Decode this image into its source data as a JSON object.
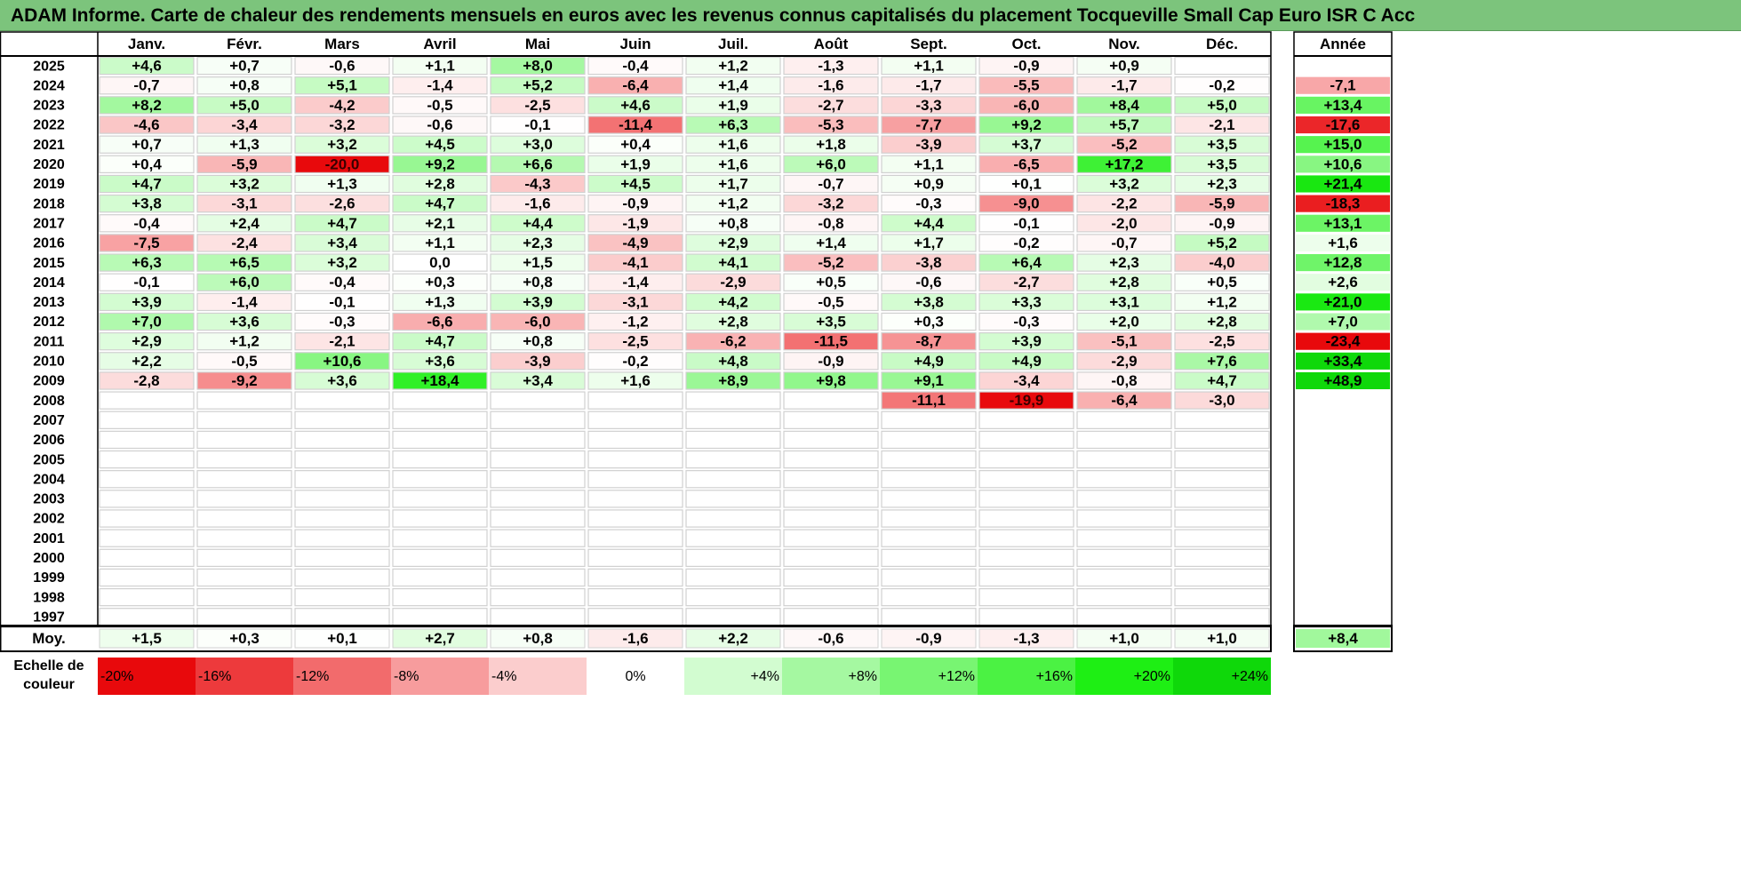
{
  "title": "ADAM Informe. Carte de chaleur des rendements mensuels en euros avec les revenus connus capitalisés du placement Tocqueville Small Cap Euro ISR C Acc",
  "chart_data": {
    "type": "heatmap",
    "months": [
      "Janv.",
      "Févr.",
      "Mars",
      "Avril",
      "Mai",
      "Juin",
      "Juil.",
      "Août",
      "Sept.",
      "Oct.",
      "Nov.",
      "Déc."
    ],
    "year_header": "Année",
    "rows": [
      {
        "year": "2025",
        "values": [
          "+4,6",
          "+0,7",
          "-0,6",
          "+1,1",
          "+8,0",
          "-0,4",
          "+1,2",
          "-1,3",
          "+1,1",
          "-0,9",
          "+0,9",
          ""
        ],
        "annual": ""
      },
      {
        "year": "2024",
        "values": [
          "-0,7",
          "+0,8",
          "+5,1",
          "-1,4",
          "+5,2",
          "-6,4",
          "+1,4",
          "-1,6",
          "-1,7",
          "-5,5",
          "-1,7",
          "-0,2"
        ],
        "annual": "-7,1"
      },
      {
        "year": "2023",
        "values": [
          "+8,2",
          "+5,0",
          "-4,2",
          "-0,5",
          "-2,5",
          "+4,6",
          "+1,9",
          "-2,7",
          "-3,3",
          "-6,0",
          "+8,4",
          "+5,0"
        ],
        "annual": "+13,4"
      },
      {
        "year": "2022",
        "values": [
          "-4,6",
          "-3,4",
          "-3,2",
          "-0,6",
          "-0,1",
          "-11,4",
          "+6,3",
          "-5,3",
          "-7,7",
          "+9,2",
          "+5,7",
          "-2,1"
        ],
        "annual": "-17,6"
      },
      {
        "year": "2021",
        "values": [
          "+0,7",
          "+1,3",
          "+3,2",
          "+4,5",
          "+3,0",
          "+0,4",
          "+1,6",
          "+1,8",
          "-3,9",
          "+3,7",
          "-5,2",
          "+3,5"
        ],
        "annual": "+15,0"
      },
      {
        "year": "2020",
        "values": [
          "+0,4",
          "-5,9",
          "-20,0",
          "+9,2",
          "+6,6",
          "+1,9",
          "+1,6",
          "+6,0",
          "+1,1",
          "-6,5",
          "+17,2",
          "+3,5"
        ],
        "annual": "+10,6"
      },
      {
        "year": "2019",
        "values": [
          "+4,7",
          "+3,2",
          "+1,3",
          "+2,8",
          "-4,3",
          "+4,5",
          "+1,7",
          "-0,7",
          "+0,9",
          "+0,1",
          "+3,2",
          "+2,3"
        ],
        "annual": "+21,4"
      },
      {
        "year": "2018",
        "values": [
          "+3,8",
          "-3,1",
          "-2,6",
          "+4,7",
          "-1,6",
          "-0,9",
          "+1,2",
          "-3,2",
          "-0,3",
          "-9,0",
          "-2,2",
          "-5,9"
        ],
        "annual": "-18,3"
      },
      {
        "year": "2017",
        "values": [
          "-0,4",
          "+2,4",
          "+4,7",
          "+2,1",
          "+4,4",
          "-1,9",
          "+0,8",
          "-0,8",
          "+4,4",
          "-0,1",
          "-2,0",
          "-0,9"
        ],
        "annual": "+13,1"
      },
      {
        "year": "2016",
        "values": [
          "-7,5",
          "-2,4",
          "+3,4",
          "+1,1",
          "+2,3",
          "-4,9",
          "+2,9",
          "+1,4",
          "+1,7",
          "-0,2",
          "-0,7",
          "+5,2"
        ],
        "annual": "+1,6"
      },
      {
        "year": "2015",
        "values": [
          "+6,3",
          "+6,5",
          "+3,2",
          "0,0",
          "+1,5",
          "-4,1",
          "+4,1",
          "-5,2",
          "-3,8",
          "+6,4",
          "+2,3",
          "-4,0"
        ],
        "annual": "+12,8"
      },
      {
        "year": "2014",
        "values": [
          "-0,1",
          "+6,0",
          "-0,4",
          "+0,3",
          "+0,8",
          "-1,4",
          "-2,9",
          "+0,5",
          "-0,6",
          "-2,7",
          "+2,8",
          "+0,5"
        ],
        "annual": "+2,6"
      },
      {
        "year": "2013",
        "values": [
          "+3,9",
          "-1,4",
          "-0,1",
          "+1,3",
          "+3,9",
          "-3,1",
          "+4,2",
          "-0,5",
          "+3,8",
          "+3,3",
          "+3,1",
          "+1,2"
        ],
        "annual": "+21,0"
      },
      {
        "year": "2012",
        "values": [
          "+7,0",
          "+3,6",
          "-0,3",
          "-6,6",
          "-6,0",
          "-1,2",
          "+2,8",
          "+3,5",
          "+0,3",
          "-0,3",
          "+2,0",
          "+2,8"
        ],
        "annual": "+7,0"
      },
      {
        "year": "2011",
        "values": [
          "+2,9",
          "+1,2",
          "-2,1",
          "+4,7",
          "+0,8",
          "-2,5",
          "-6,2",
          "-11,5",
          "-8,7",
          "+3,9",
          "-5,1",
          "-2,5"
        ],
        "annual": "-23,4"
      },
      {
        "year": "2010",
        "values": [
          "+2,2",
          "-0,5",
          "+10,6",
          "+3,6",
          "-3,9",
          "-0,2",
          "+4,8",
          "-0,9",
          "+4,9",
          "+4,9",
          "-2,9",
          "+7,6"
        ],
        "annual": "+33,4"
      },
      {
        "year": "2009",
        "values": [
          "-2,8",
          "-9,2",
          "+3,6",
          "+18,4",
          "+3,4",
          "+1,6",
          "+8,9",
          "+9,8",
          "+9,1",
          "-3,4",
          "-0,8",
          "+4,7"
        ],
        "annual": "+48,9"
      },
      {
        "year": "2008",
        "values": [
          "",
          "",
          "",
          "",
          "",
          "",
          "",
          "",
          "-11,1",
          "-19,9",
          "-6,4",
          "-3,0"
        ],
        "annual": ""
      },
      {
        "year": "2007",
        "values": [
          "",
          "",
          "",
          "",
          "",
          "",
          "",
          "",
          "",
          "",
          "",
          ""
        ],
        "annual": ""
      },
      {
        "year": "2006",
        "values": [
          "",
          "",
          "",
          "",
          "",
          "",
          "",
          "",
          "",
          "",
          "",
          ""
        ],
        "annual": ""
      },
      {
        "year": "2005",
        "values": [
          "",
          "",
          "",
          "",
          "",
          "",
          "",
          "",
          "",
          "",
          "",
          ""
        ],
        "annual": ""
      },
      {
        "year": "2004",
        "values": [
          "",
          "",
          "",
          "",
          "",
          "",
          "",
          "",
          "",
          "",
          "",
          ""
        ],
        "annual": ""
      },
      {
        "year": "2003",
        "values": [
          "",
          "",
          "",
          "",
          "",
          "",
          "",
          "",
          "",
          "",
          "",
          ""
        ],
        "annual": ""
      },
      {
        "year": "2002",
        "values": [
          "",
          "",
          "",
          "",
          "",
          "",
          "",
          "",
          "",
          "",
          "",
          ""
        ],
        "annual": ""
      },
      {
        "year": "2001",
        "values": [
          "",
          "",
          "",
          "",
          "",
          "",
          "",
          "",
          "",
          "",
          "",
          ""
        ],
        "annual": ""
      },
      {
        "year": "2000",
        "values": [
          "",
          "",
          "",
          "",
          "",
          "",
          "",
          "",
          "",
          "",
          "",
          ""
        ],
        "annual": ""
      },
      {
        "year": "1999",
        "values": [
          "",
          "",
          "",
          "",
          "",
          "",
          "",
          "",
          "",
          "",
          "",
          ""
        ],
        "annual": ""
      },
      {
        "year": "1998",
        "values": [
          "",
          "",
          "",
          "",
          "",
          "",
          "",
          "",
          "",
          "",
          "",
          ""
        ],
        "annual": ""
      },
      {
        "year": "1997",
        "values": [
          "",
          "",
          "",
          "",
          "",
          "",
          "",
          "",
          "",
          "",
          "",
          ""
        ],
        "annual": ""
      }
    ],
    "average": {
      "label": "Moy.",
      "values": [
        "+1,5",
        "+0,3",
        "+0,1",
        "+2,7",
        "+0,8",
        "-1,6",
        "+2,2",
        "-0,6",
        "-0,9",
        "-1,3",
        "+1,0",
        "+1,0"
      ],
      "annual": "+8,4"
    },
    "color_scale": {
      "label": "Echelle de couleur",
      "steps": [
        {
          "label": "-20%",
          "value": -20,
          "color": "#e8090c"
        },
        {
          "label": "-16%",
          "value": -16,
          "color": "#ed3a3c"
        },
        {
          "label": "-12%",
          "value": -12,
          "color": "#f26b6c"
        },
        {
          "label": "-8%",
          "value": -8,
          "color": "#f79c9d"
        },
        {
          "label": "-4%",
          "value": -4,
          "color": "#fbcdcd"
        },
        {
          "label": "0%",
          "value": 0,
          "color": "#ffffff"
        },
        {
          "label": "+4%",
          "value": 4,
          "color": "#d2fcd0"
        },
        {
          "label": "+8%",
          "value": 8,
          "color": "#a5f8a1"
        },
        {
          "label": "+12%",
          "value": 12,
          "color": "#78f572"
        },
        {
          "label": "+16%",
          "value": 16,
          "color": "#4bf243"
        },
        {
          "label": "+20%",
          "value": 20,
          "color": "#1eef14"
        },
        {
          "label": "+24%",
          "value": 24,
          "color": "#0fd80a"
        }
      ]
    }
  }
}
